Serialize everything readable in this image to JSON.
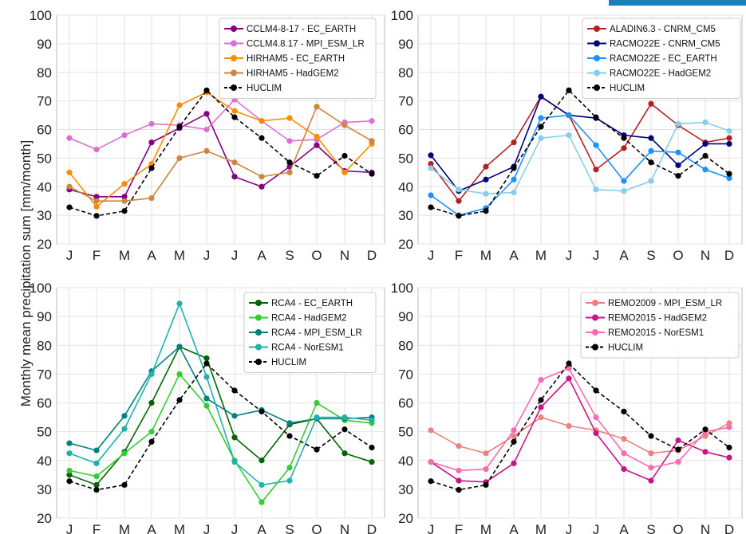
{
  "ylabel": "Monthly mean precipitation sum [mm/month]",
  "chart_data": [
    {
      "type": "line",
      "panel": "top-left",
      "categories": [
        "J",
        "F",
        "M",
        "A",
        "M",
        "J",
        "J",
        "A",
        "S",
        "O",
        "N",
        "D"
      ],
      "ylim": [
        20,
        100
      ],
      "yticks": [
        "20",
        "30",
        "40",
        "50",
        "60",
        "70",
        "80",
        "90",
        "100"
      ],
      "grid": true,
      "legend_position": "top-right",
      "series": [
        {
          "name": "CCLM4-8-17 - EC_EARTH",
          "color": "#800080",
          "dashed": false,
          "values": [
            39,
            36.5,
            36.5,
            55.5,
            60.5,
            65.5,
            43.5,
            40,
            47,
            54.5,
            45.5,
            45
          ]
        },
        {
          "name": "CCLM4.8.17 - MPI_ESM_LR",
          "color": "#da70d6",
          "dashed": false,
          "values": [
            57,
            53,
            58,
            62,
            61.5,
            60,
            70.5,
            63,
            56,
            56.5,
            62.5,
            63
          ]
        },
        {
          "name": "HIRHAM5 - EC_EARTH",
          "color": "#ff8c00",
          "dashed": false,
          "values": [
            45,
            33,
            41,
            48,
            68.5,
            73,
            66.5,
            63,
            64,
            57.5,
            45,
            55
          ]
        },
        {
          "name": "HIRHAM5 - HadGEM2",
          "color": "#cd853f",
          "dashed": false,
          "values": [
            40,
            35,
            35,
            36,
            50,
            52.5,
            48.5,
            43.5,
            45,
            68,
            61.5,
            56
          ]
        },
        {
          "name": "HUCLIM",
          "color": "#000000",
          "dashed": true,
          "values": [
            32.8,
            29.8,
            31.5,
            46.5,
            61,
            73.7,
            64.3,
            57,
            48.5,
            43.8,
            50.8,
            44.5
          ]
        }
      ]
    },
    {
      "type": "line",
      "panel": "top-right",
      "categories": [
        "J",
        "F",
        "M",
        "A",
        "M",
        "J",
        "J",
        "A",
        "S",
        "O",
        "N",
        "D"
      ],
      "ylim": [
        20,
        100
      ],
      "yticks": [
        "20",
        "30",
        "40",
        "50",
        "60",
        "70",
        "80",
        "90",
        "100"
      ],
      "grid": true,
      "legend_position": "top-right",
      "series": [
        {
          "name": "ALADIN6.3 - CNRM_CM5",
          "color": "#b22222",
          "dashed": false,
          "values": [
            48,
            35,
            47,
            55.5,
            71.5,
            65,
            46,
            53.5,
            69,
            61.5,
            55.5,
            57
          ]
        },
        {
          "name": "RACMO22E - CNRM_CM5",
          "color": "#000080",
          "dashed": false,
          "values": [
            51,
            38.5,
            42.5,
            47,
            71.5,
            65,
            64,
            58,
            57,
            47.5,
            55,
            55
          ]
        },
        {
          "name": "RACMO22E - EC_EARTH",
          "color": "#1e90ff",
          "dashed": false,
          "values": [
            37,
            30,
            32.5,
            42.5,
            64,
            65,
            54.5,
            42,
            52.5,
            52,
            46,
            43
          ]
        },
        {
          "name": "RACMO22E - HadGEM2",
          "color": "#87ceeb",
          "dashed": false,
          "values": [
            46.5,
            39,
            37.5,
            38,
            57,
            58,
            39,
            38.5,
            42,
            62,
            62.5,
            59.5
          ]
        },
        {
          "name": "HUCLIM",
          "color": "#000000",
          "dashed": true,
          "values": [
            32.8,
            29.8,
            31.5,
            46.5,
            61,
            73.7,
            64.3,
            57,
            48.5,
            43.8,
            50.8,
            44.5
          ]
        }
      ]
    },
    {
      "type": "line",
      "panel": "bottom-left",
      "categories": [
        "J",
        "F",
        "M",
        "A",
        "M",
        "J",
        "J",
        "A",
        "S",
        "O",
        "N",
        "D"
      ],
      "ylim": [
        20,
        100
      ],
      "yticks": [
        "20",
        "30",
        "40",
        "50",
        "60",
        "70",
        "80",
        "90",
        "100"
      ],
      "grid": true,
      "legend_position": "top-right",
      "series": [
        {
          "name": "RCA4 - EC_EARTH",
          "color": "#006400",
          "dashed": false,
          "values": [
            35,
            31.5,
            43,
            60,
            79.5,
            75.5,
            48,
            40,
            52.5,
            54.5,
            42.5,
            39.5
          ]
        },
        {
          "name": "RCA4 - HadGEM2",
          "color": "#32cd32",
          "dashed": false,
          "values": [
            36.5,
            34.5,
            42.5,
            50,
            70,
            59,
            40,
            25.5,
            37.5,
            60,
            54,
            53
          ]
        },
        {
          "name": "RCA4 - MPI_ESM_LR",
          "color": "#008080",
          "dashed": false,
          "values": [
            46,
            43.5,
            55.5,
            71,
            79.5,
            61.5,
            55.5,
            57.5,
            53,
            54.5,
            54.5,
            55
          ]
        },
        {
          "name": "RCA4 - NorESM1",
          "color": "#20b2aa",
          "dashed": false,
          "values": [
            42.5,
            39,
            51,
            70,
            94.5,
            69,
            39.5,
            31.5,
            33,
            55,
            55,
            54
          ]
        },
        {
          "name": "HUCLIM",
          "color": "#000000",
          "dashed": true,
          "values": [
            32.8,
            29.8,
            31.5,
            46.5,
            61,
            73.7,
            64.3,
            57,
            48.5,
            43.8,
            50.8,
            44.5
          ]
        }
      ]
    },
    {
      "type": "line",
      "panel": "bottom-right",
      "categories": [
        "J",
        "F",
        "M",
        "A",
        "M",
        "J",
        "J",
        "A",
        "S",
        "O",
        "N",
        "D"
      ],
      "ylim": [
        20,
        100
      ],
      "yticks": [
        "20",
        "30",
        "40",
        "50",
        "60",
        "70",
        "80",
        "90",
        "100"
      ],
      "grid": true,
      "legend_position": "top-right",
      "series": [
        {
          "name": "REMO2009 - MPI_ESM_LR",
          "color": "#f08080",
          "dashed": false,
          "values": [
            50.5,
            45,
            42.5,
            48.5,
            55,
            52,
            50.5,
            47.5,
            42.5,
            43.5,
            48.5,
            53
          ]
        },
        {
          "name": "REMO2015 - HadGEM2",
          "color": "#c71585",
          "dashed": false,
          "values": [
            39.5,
            33,
            32.5,
            39,
            58.5,
            68.5,
            49.5,
            37,
            33,
            47,
            43,
            41
          ]
        },
        {
          "name": "REMO2015 - NorESM1",
          "color": "#ff69b4",
          "dashed": false,
          "values": [
            39.5,
            36.5,
            37,
            50.5,
            68,
            72,
            55,
            42.5,
            37.5,
            39.5,
            50,
            51.5
          ]
        },
        {
          "name": "HUCLIM",
          "color": "#000000",
          "dashed": true,
          "values": [
            32.8,
            29.8,
            31.5,
            46.5,
            61,
            73.7,
            64.3,
            57,
            48.5,
            43.8,
            50.8,
            44.5
          ]
        }
      ]
    }
  ]
}
